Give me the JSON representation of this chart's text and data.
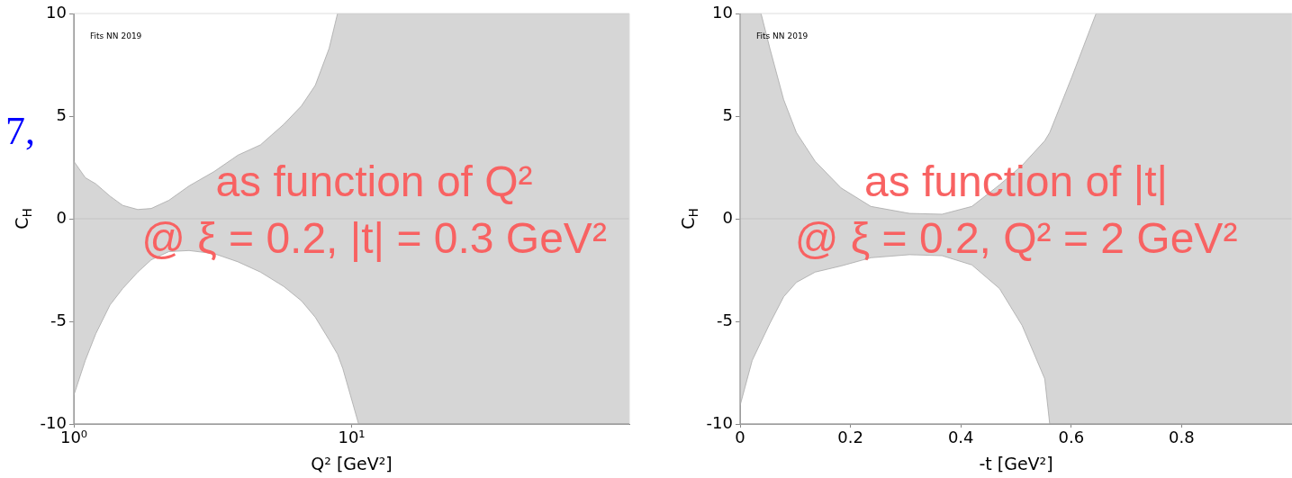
{
  "chart_data": [
    {
      "type": "area",
      "xlabel": "Q² [GeV²]",
      "ylabel": "C$_{H}$",
      "log": "x",
      "xlim": [
        1,
        100
      ],
      "xticks": [
        {
          "value": 1,
          "label": "10⁰"
        },
        {
          "value": 10,
          "label": "10¹"
        }
      ],
      "ylim": [
        -10,
        10
      ],
      "yticks": [
        -10,
        -5,
        0,
        5,
        10
      ],
      "legend": false,
      "ref_lines": [
        {
          "axis": "y",
          "value": 0,
          "color": "#c4c4c4"
        }
      ],
      "annotations": [
        "Fits NN 2019",
        "as function of Q²",
        "@ ξ = 0.2, |t| = 0.3 GeV²",
        "7,"
      ],
      "series": [
        {
          "color": "#d6d6d6",
          "x": [
            1,
            1.1,
            1.2,
            1.35,
            1.5,
            1.7,
            1.9,
            2.2,
            2.6,
            3.2,
            3.9,
            4.7,
            5.7,
            6.6,
            7.4,
            8.3,
            8.9,
            9.3,
            10.6,
            100
          ],
          "values": [
            2.8,
            2.0,
            1.7,
            1.1,
            0.65,
            0.45,
            0.5,
            0.9,
            1.6,
            2.3,
            3.1,
            3.6,
            4.6,
            5.5,
            6.5,
            8.3,
            10,
            10,
            10,
            10
          ]
        },
        {
          "color": "#d6d6d6",
          "x": [
            1,
            1.1,
            1.2,
            1.35,
            1.5,
            1.7,
            1.9,
            2.2,
            2.6,
            3.2,
            3.9,
            4.7,
            5.7,
            6.6,
            7.4,
            8.3,
            8.9,
            9.3,
            10.6,
            100
          ],
          "values": [
            -8.6,
            -6.9,
            -5.6,
            -4.2,
            -3.4,
            -2.6,
            -2.0,
            -1.6,
            -1.55,
            -1.7,
            -2.1,
            -2.6,
            -3.3,
            -4.0,
            -4.8,
            -5.9,
            -6.6,
            -7.3,
            -10,
            -10
          ]
        }
      ]
    },
    {
      "type": "area",
      "xlabel": "-t [GeV²]",
      "ylabel": "C$_{H}$",
      "xlim": [
        0,
        1
      ],
      "xticks": [
        0,
        0.2,
        0.4,
        0.6,
        0.8
      ],
      "ylim": [
        -10,
        10
      ],
      "yticks": [
        -10,
        -5,
        0,
        5,
        10
      ],
      "legend": false,
      "ref_lines": [
        {
          "axis": "y",
          "value": 0,
          "color": "#c4c4c4"
        }
      ],
      "annotations": [
        "Fits NN 2019",
        "as function of |t|",
        "@ ξ = 0.2, Q² = 2 GeV²"
      ],
      "series": [
        {
          "color": "#d6d6d6",
          "x": [
            0,
            0.022,
            0.038,
            0.054,
            0.079,
            0.102,
            0.136,
            0.183,
            0.237,
            0.307,
            0.366,
            0.42,
            0.47,
            0.511,
            0.552,
            0.561,
            0.601,
            0.645,
            1.0
          ],
          "values": [
            10,
            10,
            10,
            8.3,
            5.8,
            4.2,
            2.8,
            1.5,
            0.6,
            0.26,
            0.22,
            0.6,
            1.65,
            2.6,
            3.8,
            4.2,
            6.9,
            10,
            10
          ]
        },
        {
          "color": "#d6d6d6",
          "x": [
            0,
            0.022,
            0.038,
            0.054,
            0.079,
            0.102,
            0.136,
            0.183,
            0.237,
            0.307,
            0.366,
            0.42,
            0.47,
            0.511,
            0.552,
            0.561,
            0.601,
            0.645,
            1.0
          ],
          "values": [
            -9.1,
            -6.9,
            -6.0,
            -5.1,
            -3.8,
            -3.1,
            -2.6,
            -2.3,
            -1.9,
            -1.75,
            -1.8,
            -2.25,
            -3.4,
            -5.2,
            -7.8,
            -10,
            -10,
            -10,
            -10
          ]
        }
      ]
    }
  ]
}
